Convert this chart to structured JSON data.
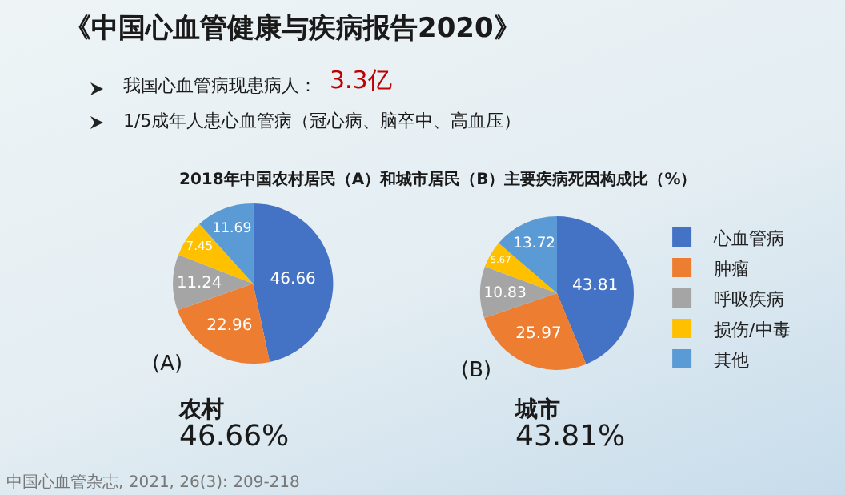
{
  "chart_data": {
    "type": "pie",
    "title": "《中国心血管健康与疾病报告2020》",
    "subtitle": "2018年中国农村居民（A）和城市居民（B）主要疾病死因构成比（%）",
    "categories": [
      "心血管病",
      "肿瘤",
      "呼吸疾病",
      "损伤/中毒",
      "其他"
    ],
    "colors": [
      "#4472c4",
      "#ed7d31",
      "#a5a5a5",
      "#ffc000",
      "#5b9bd5"
    ],
    "series": [
      {
        "name": "(A)",
        "values": [
          46.66,
          22.96,
          11.24,
          7.45,
          11.69
        ]
      },
      {
        "name": "(B)",
        "values": [
          43.81,
          25.97,
          10.83,
          5.67,
          13.72
        ]
      }
    ],
    "data_labels": true,
    "legend": "right",
    "annotations": [
      "我国心血管病现患病人：",
      "3.3亿",
      "1/5成年人患心血管病（冠心病、脑卒中、高血压）",
      "农村",
      "46.66%",
      "城市",
      "43.81%",
      "中国心血管杂志, 2021, 26(3): 209-218"
    ]
  }
}
